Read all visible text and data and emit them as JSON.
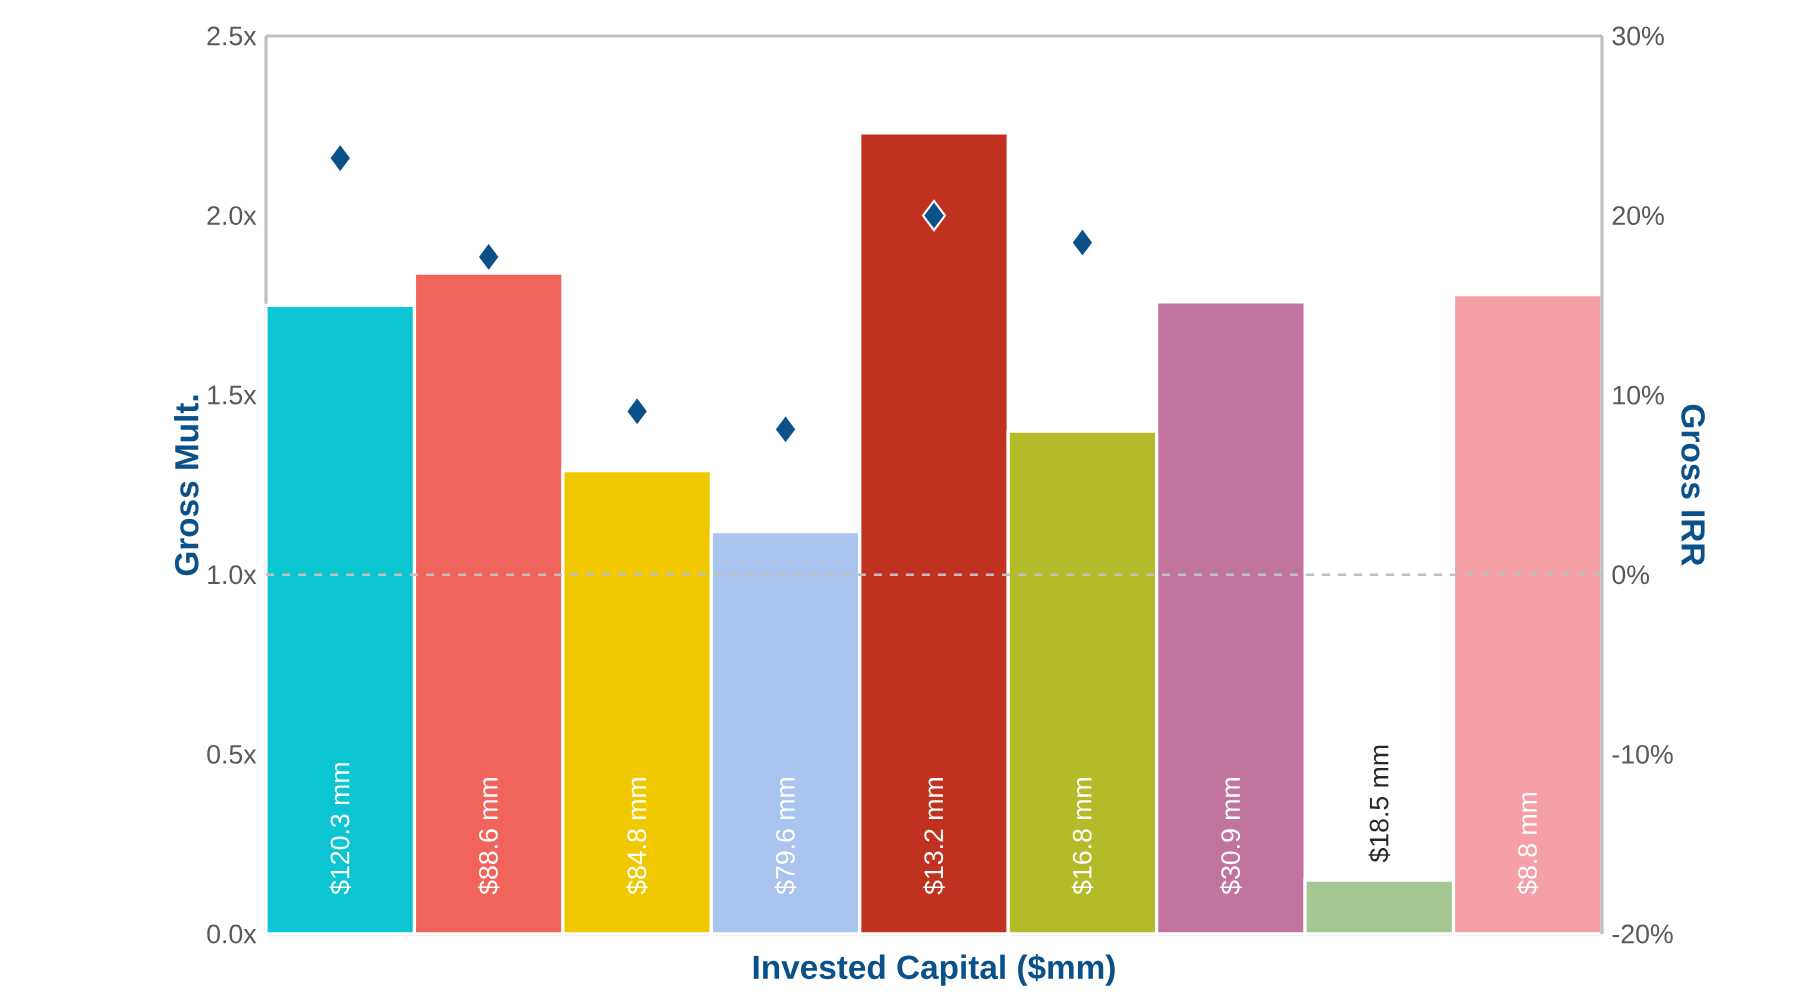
{
  "chart_data": {
    "type": "bar",
    "xlabel": "Invested Capital ($mm)",
    "ylabel": "Gross Mult.",
    "y2label": "Gross IRR",
    "categories": [
      "$120.3 mm",
      "$88.6 mm",
      "$84.8 mm",
      "$79.6 mm",
      "$13.2 mm",
      "$16.8 mm",
      "$30.9 mm",
      "$18.5 mm",
      "$8.8 mm"
    ],
    "ylim": [
      0,
      2.5
    ],
    "yticks": [
      {
        "value": 0,
        "label": "0.0x"
      },
      {
        "value": 0.5,
        "label": "0.5x"
      },
      {
        "value": 1,
        "label": "1.0x"
      },
      {
        "value": 1.5,
        "label": "1.5x"
      },
      {
        "value": 2,
        "label": "2.0x"
      },
      {
        "value": 2.5,
        "label": "2.5x"
      }
    ],
    "y2lim": [
      -20,
      30
    ],
    "y2ticks": [
      {
        "value": -20,
        "label": "-20%"
      },
      {
        "value": -10,
        "label": "-10%"
      },
      {
        "value": 0,
        "label": "0%"
      },
      {
        "value": 10,
        "label": "10%"
      },
      {
        "value": 20,
        "label": "20%"
      },
      {
        "value": 30,
        "label": "30%"
      }
    ],
    "series": [
      {
        "colors": [
          "#0bc5d3",
          "#f0645c",
          "#f0c800",
          "#a9c4ee",
          "#c0311f",
          "#b3bb28",
          "#c0749e",
          "#a5c890",
          "#f4a0a6"
        ],
        "values": [
          1.75,
          1.84,
          1.29,
          1.12,
          2.23,
          1.4,
          1.76,
          0.15,
          1.78
        ]
      },
      {
        "type": "scatter",
        "axis": "y2",
        "color": "#0b5189",
        "marker": "diamond",
        "values": [
          23.2,
          17.7,
          9.1,
          8.1,
          20.0,
          18.5,
          null,
          null,
          null
        ]
      }
    ],
    "ref_lines": [
      {
        "axis": "y2",
        "value": 0,
        "color": "#bfbfbf",
        "line_style": "dashed"
      }
    ],
    "grid": false
  }
}
